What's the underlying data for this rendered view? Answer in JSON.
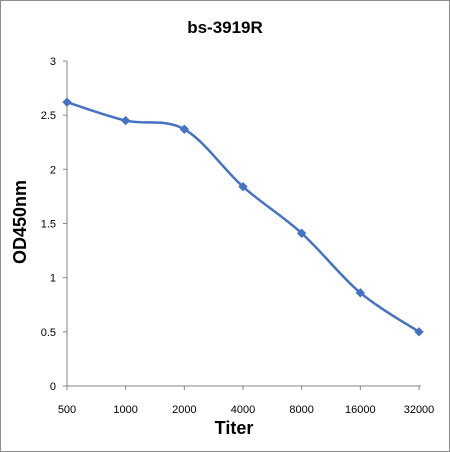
{
  "chart_data": {
    "type": "line",
    "title": "bs-3919R",
    "xlabel": "Titer",
    "ylabel": "OD450nm",
    "categories": [
      "500",
      "1000",
      "2000",
      "4000",
      "8000",
      "16000",
      "32000"
    ],
    "series": [
      {
        "values": [
          2.62,
          2.45,
          2.37,
          1.84,
          1.41,
          0.86,
          0.5
        ]
      }
    ],
    "ylim": [
      0,
      3
    ],
    "yticks": [
      "0",
      "0.5",
      "1",
      "1.5",
      "2",
      "2.5",
      "3"
    ],
    "grid": false,
    "legend": "none",
    "colors": {
      "series": "#4472C4",
      "axis": "#868686",
      "text": "#000000"
    },
    "marker": "diamond"
  }
}
